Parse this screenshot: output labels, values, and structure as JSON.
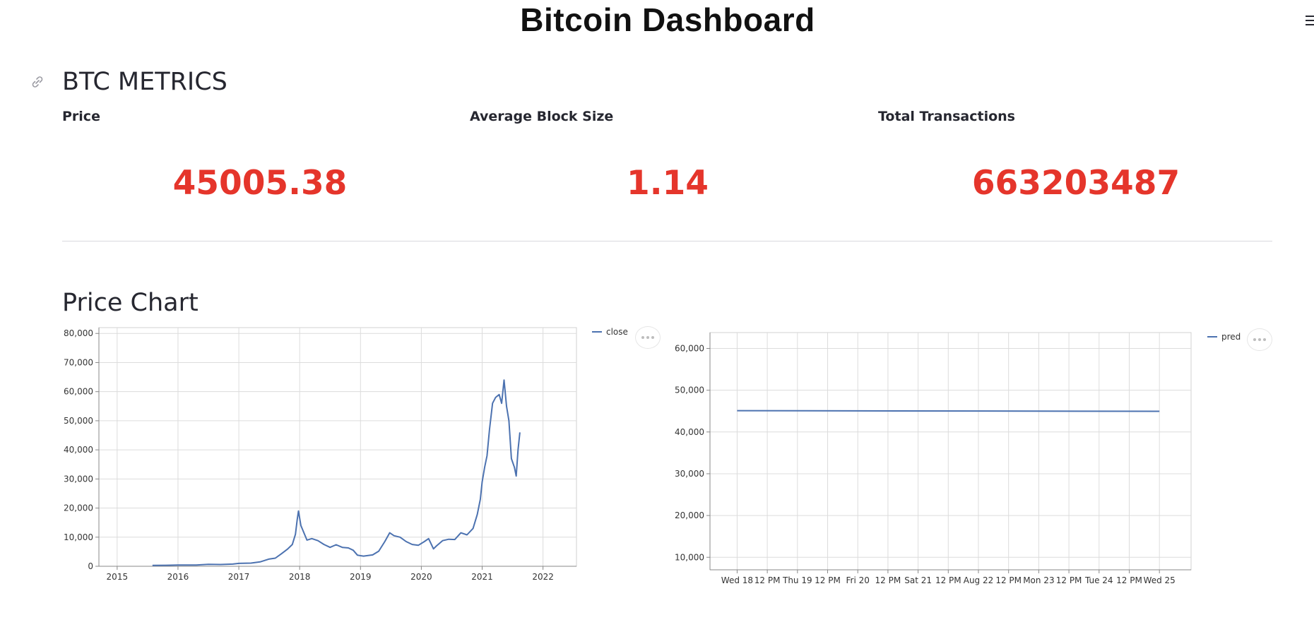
{
  "app": {
    "title": "Bitcoin Dashboard"
  },
  "sections": {
    "metrics_title": "BTC METRICS",
    "price_chart_title": "Price Chart"
  },
  "metrics": [
    {
      "label": "Price",
      "value": "45005.38"
    },
    {
      "label": "Average Block Size",
      "value": "1.14"
    },
    {
      "label": "Total Transactions",
      "value": "663203487"
    }
  ],
  "icons": {
    "anchor": "link-icon",
    "menu": "hamburger-menu-icon",
    "more": "more-horizontal-icon"
  },
  "colors": {
    "accent": "#e5352b",
    "series": "#4c72b0"
  },
  "chart_data": [
    {
      "type": "line",
      "legend": "close",
      "legend_position": "top-right",
      "grid": true,
      "xlim": [
        2014.7,
        2022.55
      ],
      "ylim": [
        0,
        82000
      ],
      "x_ticks": [
        "2015",
        "2016",
        "2017",
        "2018",
        "2019",
        "2020",
        "2021",
        "2022"
      ],
      "y_ticks": [
        "0",
        "10,000",
        "20,000",
        "30,000",
        "40,000",
        "50,000",
        "60,000",
        "70,000",
        "80,000"
      ],
      "series": [
        {
          "name": "close",
          "x": [
            2015.58,
            2015.8,
            2016.0,
            2016.3,
            2016.5,
            2016.7,
            2016.9,
            2017.0,
            2017.2,
            2017.35,
            2017.5,
            2017.6,
            2017.7,
            2017.8,
            2017.88,
            2017.93,
            2017.96,
            2017.98,
            2018.02,
            2018.08,
            2018.12,
            2018.2,
            2018.3,
            2018.4,
            2018.5,
            2018.6,
            2018.7,
            2018.8,
            2018.88,
            2018.95,
            2019.05,
            2019.2,
            2019.3,
            2019.4,
            2019.48,
            2019.55,
            2019.65,
            2019.75,
            2019.85,
            2019.95,
            2020.05,
            2020.12,
            2020.2,
            2020.25,
            2020.35,
            2020.45,
            2020.55,
            2020.65,
            2020.75,
            2020.85,
            2020.92,
            2020.97,
            2021.0,
            2021.04,
            2021.08,
            2021.12,
            2021.17,
            2021.22,
            2021.28,
            2021.32,
            2021.36,
            2021.4,
            2021.44,
            2021.48,
            2021.53,
            2021.56,
            2021.59,
            2021.62
          ],
          "y": [
            280,
            330,
            430,
            420,
            650,
            610,
            740,
            990,
            1100,
            1500,
            2500,
            2800,
            4300,
            5900,
            7500,
            11000,
            16000,
            19000,
            14000,
            11000,
            9000,
            9500,
            8800,
            7500,
            6500,
            7400,
            6500,
            6300,
            5500,
            3800,
            3500,
            3900,
            5200,
            8500,
            11500,
            10500,
            10000,
            8500,
            7500,
            7200,
            8500,
            9500,
            6000,
            7000,
            8800,
            9300,
            9200,
            11500,
            10800,
            13000,
            17800,
            23000,
            29000,
            34000,
            38000,
            47000,
            56000,
            58000,
            59000,
            56000,
            64000,
            55000,
            50000,
            37000,
            34000,
            31000,
            40000,
            46000
          ]
        }
      ]
    },
    {
      "type": "line",
      "legend": "pred",
      "legend_position": "top-right",
      "grid": true,
      "xlim": [
        -0.9,
        15.05
      ],
      "ylim": [
        7000,
        63800
      ],
      "x_ticks": [
        "Wed 18",
        "12 PM",
        "Thu 19",
        "12 PM",
        "Fri 20",
        "12 PM",
        "Sat 21",
        "12 PM",
        "Aug 22",
        "12 PM",
        "Mon 23",
        "12 PM",
        "Tue 24",
        "12 PM",
        "Wed 25"
      ],
      "y_ticks": [
        "10,000",
        "20,000",
        "30,000",
        "40,000",
        "50,000",
        "60,000"
      ],
      "series": [
        {
          "name": "pred",
          "x": [
            0,
            14
          ],
          "y": [
            45100,
            44950
          ]
        }
      ]
    }
  ]
}
